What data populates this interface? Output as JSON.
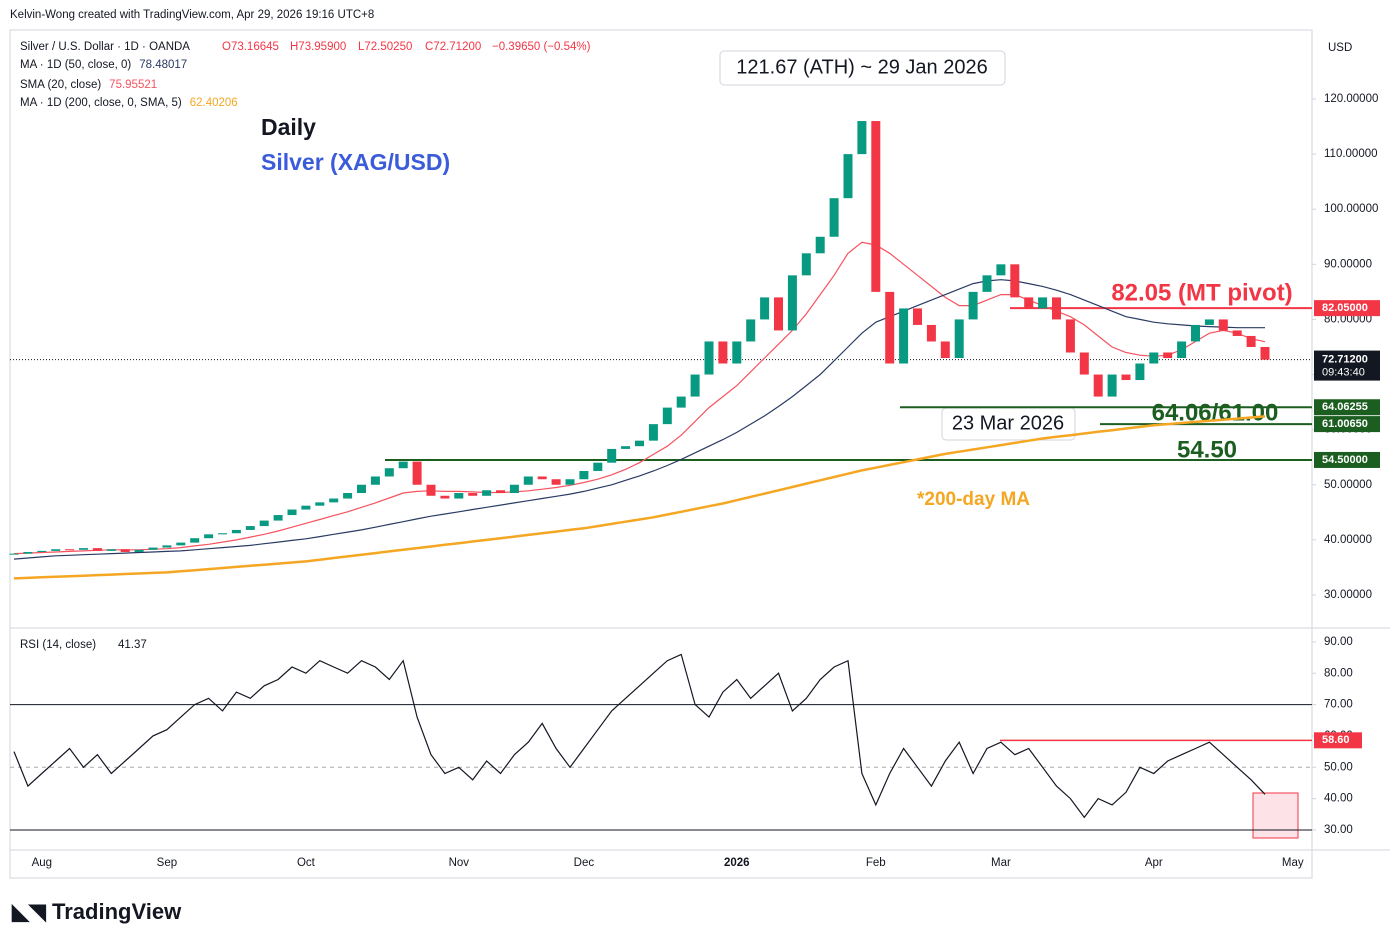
{
  "header": "Kelvin-Wong created with TradingView.com, Apr 29, 2026 19:16 UTC+8",
  "legend": {
    "symbol": "Silver / U.S. Dollar · 1D · OANDA",
    "open": "O73.16645",
    "high": "H73.95900",
    "low": "L72.50250",
    "close": "C72.71200",
    "change": "−0.39650 (−0.54%)"
  },
  "currency": "USD",
  "watermark": "TradingView",
  "chart_data": [
    {
      "type": "candlestick",
      "ylim": [
        24.55,
        132.52
      ],
      "yticks": [
        {
          "value": 30,
          "label": "30.00000"
        },
        {
          "value": 40,
          "label": "40.00000"
        },
        {
          "value": 50,
          "label": "50.00000"
        },
        {
          "value": 60,
          "label": "60.00000"
        },
        {
          "value": 70,
          "label": "70.00000"
        },
        {
          "value": 80,
          "label": "80.00000"
        },
        {
          "value": 90,
          "label": "90.00000"
        },
        {
          "value": 100,
          "label": "100.00000"
        },
        {
          "value": 110,
          "label": "110.00000"
        },
        {
          "value": 120,
          "label": "120.00000"
        }
      ],
      "categories": [
        null,
        null,
        "Aug",
        null,
        null,
        null,
        null,
        null,
        null,
        null,
        null,
        "Sep",
        null,
        null,
        null,
        null,
        null,
        null,
        null,
        null,
        null,
        "Oct",
        null,
        null,
        null,
        null,
        null,
        null,
        null,
        null,
        null,
        null,
        "Nov",
        null,
        null,
        null,
        null,
        null,
        null,
        null,
        null,
        "Dec",
        null,
        null,
        null,
        null,
        null,
        null,
        null,
        null,
        null,
        null,
        "2026",
        null,
        null,
        null,
        null,
        null,
        null,
        null,
        null,
        null,
        "Feb",
        null,
        null,
        null,
        null,
        null,
        null,
        null,
        null,
        "Mar",
        null,
        null,
        null,
        null,
        null,
        null,
        null,
        null,
        null,
        null,
        "Apr",
        null,
        null,
        null,
        null,
        null,
        null,
        null,
        null,
        null,
        "May",
        null
      ],
      "up_color": "#089981",
      "down_color": "#f23645",
      "values": [
        37.5,
        37.8,
        38,
        38.3,
        38.2,
        38.5,
        38,
        38.3,
        37.8,
        38.2,
        38.6,
        39,
        39.5,
        40.3,
        41,
        41.2,
        41.8,
        42.5,
        43.5,
        44.5,
        45.5,
        46.2,
        46.8,
        47.5,
        48.5,
        50,
        51.5,
        53,
        54.2,
        50,
        48,
        47.5,
        48.5,
        48,
        49,
        48.5,
        50,
        51.5,
        51,
        50,
        51,
        52.5,
        54,
        56.5,
        57,
        58,
        61,
        64,
        66,
        70,
        76,
        72,
        76,
        80,
        84,
        78,
        88,
        92,
        95,
        102,
        110,
        116,
        85,
        72,
        82,
        79,
        76,
        73,
        80,
        85,
        88,
        90,
        84,
        82,
        84,
        80,
        74,
        70,
        66,
        70,
        69,
        72,
        74,
        73,
        76,
        79,
        80,
        78,
        77,
        75,
        72.7,
        null,
        null,
        null
      ],
      "series": [
        {
          "name": "SMA (20, close)",
          "color": "#f7525f",
          "last_label": "75.95521",
          "values": [
            37.5,
            37.6,
            37.7,
            37.8,
            37.9,
            38,
            38.1,
            38.2,
            38.2,
            38.2,
            38.3,
            38.4,
            38.6,
            38.9,
            39.2,
            39.6,
            40,
            40.5,
            41,
            41.6,
            42.3,
            43,
            43.7,
            44.4,
            45.1,
            45.9,
            46.7,
            47.6,
            48.5,
            48.8,
            48.9,
            48.8,
            48.8,
            48.7,
            48.6,
            48.6,
            48.7,
            48.9,
            49.2,
            49.5,
            49.9,
            50.4,
            51,
            51.8,
            52.8,
            54,
            55.5,
            57,
            59,
            61.5,
            64,
            66,
            68,
            70.5,
            73,
            75.5,
            78,
            81,
            84.5,
            88,
            92,
            94,
            93.5,
            92,
            90,
            88,
            86,
            84,
            82.5,
            82.5,
            83.5,
            84.5,
            84.5,
            83.5,
            82.5,
            81.5,
            80.5,
            79,
            77,
            75,
            74,
            73.5,
            73.3,
            73.5,
            74.5,
            76,
            77.5,
            78,
            77.5,
            76.5,
            75.96,
            null,
            null,
            null
          ]
        },
        {
          "name": "MA · 1D (50, close, 0)",
          "color": "#2a3b63",
          "last_label": "78.48017",
          "values": [
            36.5,
            36.7,
            36.9,
            37.1,
            37.2,
            37.3,
            37.4,
            37.5,
            37.6,
            37.7,
            37.8,
            37.9,
            38,
            38.2,
            38.4,
            38.6,
            38.8,
            39,
            39.3,
            39.6,
            39.9,
            40.2,
            40.6,
            41,
            41.4,
            41.8,
            42.3,
            42.8,
            43.3,
            43.8,
            44.3,
            44.7,
            45.1,
            45.5,
            45.9,
            46.3,
            46.7,
            47.1,
            47.5,
            47.9,
            48.3,
            48.8,
            49.4,
            50,
            50.8,
            51.6,
            52.5,
            53.5,
            54.6,
            55.8,
            57,
            58.2,
            59.5,
            61,
            62.5,
            64.2,
            66,
            68,
            70,
            72.5,
            75,
            77.5,
            79.5,
            80.5,
            81.5,
            82.5,
            83.5,
            84.5,
            85.5,
            86.5,
            87,
            87.2,
            87,
            86.5,
            86,
            85.3,
            84.5,
            83.5,
            82.5,
            81.5,
            80.5,
            80,
            79.5,
            79.2,
            79,
            78.8,
            78.7,
            78.6,
            78.5,
            78.5,
            78.5,
            null,
            null,
            null
          ]
        },
        {
          "name": "MA · 1D (200, close, 0, SMA, 5)",
          "color": "#f5a623",
          "last_label": "62.40206",
          "values": [
            33,
            33.1,
            33.2,
            33.3,
            33.4,
            33.5,
            33.6,
            33.7,
            33.8,
            33.9,
            34,
            34.1,
            34.3,
            34.5,
            34.7,
            34.9,
            35.1,
            35.3,
            35.5,
            35.7,
            35.9,
            36.1,
            36.4,
            36.7,
            37,
            37.3,
            37.6,
            37.9,
            38.2,
            38.5,
            38.8,
            39.1,
            39.4,
            39.7,
            40,
            40.3,
            40.6,
            40.9,
            41.2,
            41.5,
            41.8,
            42.1,
            42.5,
            42.9,
            43.3,
            43.7,
            44.1,
            44.6,
            45.1,
            45.6,
            46.1,
            46.6,
            47.2,
            47.8,
            48.4,
            49,
            49.6,
            50.2,
            50.8,
            51.4,
            52,
            52.6,
            53.1,
            53.6,
            54.1,
            54.6,
            55.1,
            55.6,
            56,
            56.4,
            56.8,
            57.2,
            57.6,
            58,
            58.4,
            58.7,
            59,
            59.3,
            59.6,
            59.9,
            60.2,
            60.5,
            60.8,
            61,
            61.2,
            61.4,
            61.6,
            61.8,
            62,
            62.2,
            62.4,
            null,
            null,
            null
          ]
        }
      ],
      "levels": [
        {
          "value": 82.05,
          "label": "82.05000",
          "color": "#f23645"
        },
        {
          "value": 64.06255,
          "label": "64.06255",
          "color": "#1b5e20"
        },
        {
          "value": 61.0065,
          "label": "61.00650",
          "color": "#1b5e20"
        },
        {
          "value": 54.5,
          "label": "54.50000",
          "color": "#1b5e20"
        }
      ],
      "last_price": {
        "value": 72.712,
        "label": "72.71200",
        "countdown": "09:43:40"
      },
      "annotations": {
        "daily": "Daily",
        "instrument": "Silver (XAG/USD)",
        "ath": "121.67 (ATH) ~ 29 Jan 2026",
        "pivot": "82.05 (MT pivot)",
        "support": "64.06/61.00",
        "low_date": "23 Mar 2026",
        "level3": "54.50",
        "ma200": "*200-day MA"
      }
    },
    {
      "type": "line",
      "title": "RSI (14, close)",
      "last_label": "41.37",
      "color": "#131722",
      "ylim": [
        23.6,
        93.8
      ],
      "yticks": [
        {
          "value": 30,
          "label": "30.00"
        },
        {
          "value": 40,
          "label": "40.00"
        },
        {
          "value": 50,
          "label": "50.00"
        },
        {
          "value": 60,
          "label": "60.00"
        },
        {
          "value": 70,
          "label": "70.00"
        },
        {
          "value": 80,
          "label": "80.00"
        },
        {
          "value": 90,
          "label": "90.00"
        }
      ],
      "bands": [
        70,
        50,
        30
      ],
      "level": {
        "value": 58.6,
        "label": "58.60",
        "color": "#f23645"
      },
      "values": [
        55,
        44,
        48,
        52,
        56,
        50,
        54,
        48,
        52,
        56,
        60,
        62,
        66,
        70,
        72,
        68,
        74,
        72,
        76,
        78,
        82,
        80,
        84,
        82,
        80,
        84,
        82,
        78,
        84,
        66,
        54,
        48,
        50,
        46,
        52,
        48,
        54,
        58,
        64,
        56,
        50,
        56,
        62,
        68,
        72,
        76,
        80,
        84,
        86,
        70,
        66,
        74,
        78,
        72,
        76,
        80,
        68,
        72,
        78,
        82,
        84,
        48,
        38,
        48,
        56,
        50,
        44,
        52,
        58,
        48,
        56,
        58,
        54,
        56,
        50,
        44,
        40,
        34,
        40,
        38,
        42,
        50,
        48,
        52,
        54,
        56,
        58,
        54,
        50,
        46,
        41.37,
        null,
        null,
        null
      ]
    }
  ]
}
